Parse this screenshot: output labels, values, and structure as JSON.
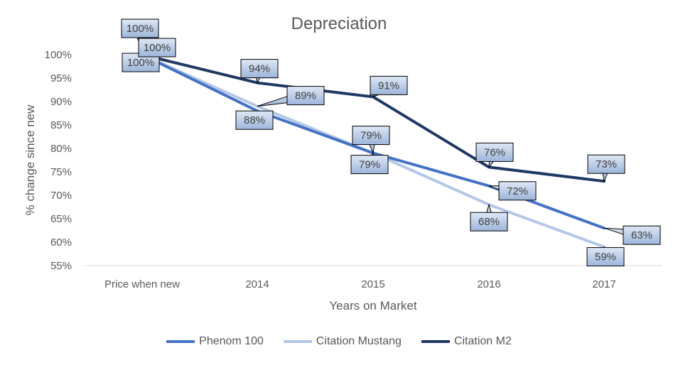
{
  "chart_data": {
    "type": "line",
    "title": "Depreciation",
    "xlabel": "Years on Market",
    "ylabel": "% change since new",
    "categories": [
      "Price when new",
      "2014",
      "2015",
      "2016",
      "2017"
    ],
    "ylim": [
      55,
      100
    ],
    "yticks": [
      "100%",
      "95%",
      "90%",
      "85%",
      "80%",
      "75%",
      "70%",
      "65%",
      "60%",
      "55%"
    ],
    "grid": false,
    "legend_position": "bottom",
    "series": [
      {
        "name": "Phenom 100",
        "color": "#4472C4",
        "values": [
          100,
          88,
          79,
          72,
          63
        ],
        "labels": [
          "100%",
          "88%",
          "79%",
          "72%",
          "63%"
        ]
      },
      {
        "name": "Citation Mustang",
        "color": "#B4C7E7",
        "values": [
          100,
          89,
          79,
          68,
          59
        ],
        "labels": [
          "100%",
          "89%",
          "79%",
          "68%",
          "59%"
        ]
      },
      {
        "name": "Citation M2",
        "color": "#203864",
        "values": [
          100,
          94,
          91,
          76,
          73
        ],
        "labels": [
          "100%",
          "94%",
          "91%",
          "76%",
          "73%"
        ]
      }
    ]
  }
}
